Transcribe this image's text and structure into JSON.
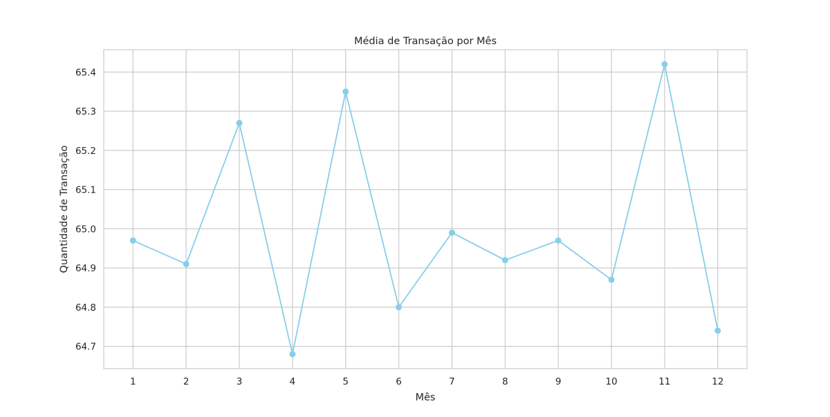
{
  "chart_data": {
    "type": "line",
    "title": "Média de Transação por Mês",
    "xlabel": "Mês",
    "ylabel": "Quantidade de Transação",
    "x": [
      1,
      2,
      3,
      4,
      5,
      6,
      7,
      8,
      9,
      10,
      11,
      12
    ],
    "x_tick_labels": [
      "1",
      "2",
      "3",
      "4",
      "5",
      "6",
      "7",
      "8",
      "9",
      "10",
      "11",
      "12"
    ],
    "series": [
      {
        "values": [
          64.97,
          64.91,
          65.27,
          64.68,
          65.35,
          64.8,
          64.99,
          64.92,
          64.97,
          64.87,
          65.42,
          64.74
        ],
        "color": "#87ceeb",
        "marker": "circle"
      }
    ],
    "y_ticks": [
      64.7,
      64.8,
      64.9,
      65.0,
      65.1,
      65.2,
      65.3,
      65.4
    ],
    "y_tick_labels": [
      "64.7",
      "64.8",
      "64.9",
      "65.0",
      "65.1",
      "65.2",
      "65.3",
      "65.4"
    ],
    "xlim": [
      0.45,
      12.55
    ],
    "ylim": [
      64.643,
      65.457
    ],
    "grid": true,
    "colors": {
      "grid": "#cccccc",
      "frame": "#cccccc",
      "text": "#262626"
    }
  }
}
